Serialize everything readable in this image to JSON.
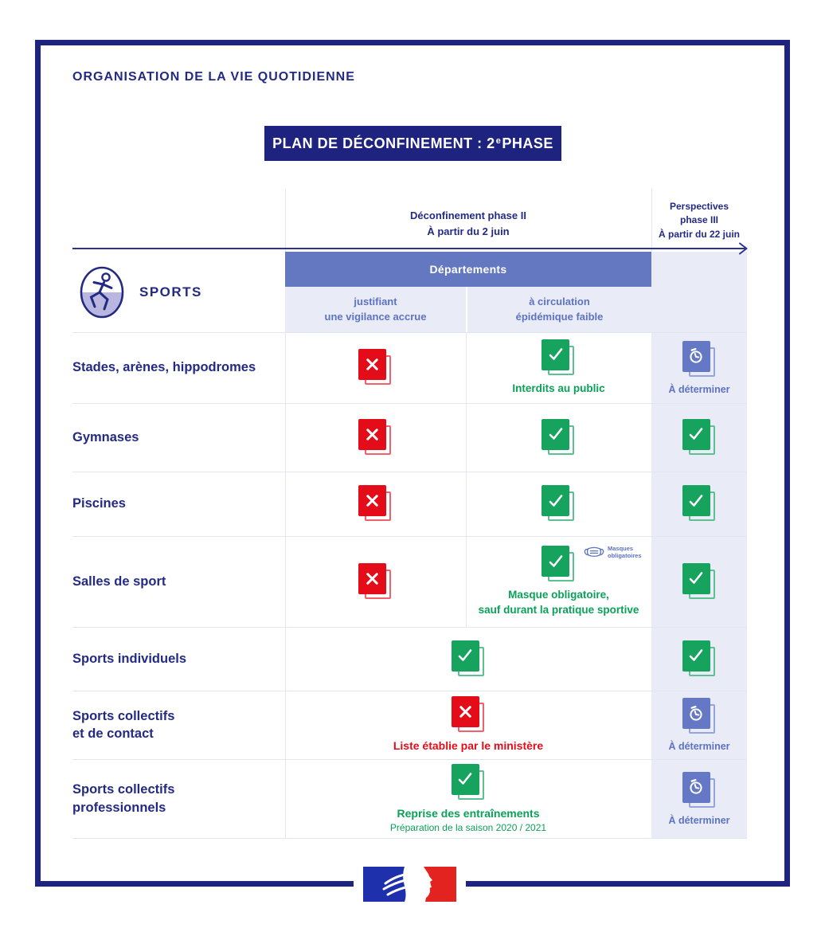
{
  "header": {
    "section_title": "ORGANISATION DE LA VIE QUOTIDIENNE",
    "banner_prefix": "PLAN DE DÉCONFINEMENT : 2",
    "banner_sup": "e",
    "banner_suffix": " PHASE"
  },
  "timeline": {
    "phase2_label": "Déconfinement phase II\nÀ partir du 2 juin",
    "phase3_label": "Perspectives\nphase III\nÀ partir du 22 juin"
  },
  "table": {
    "section_label": "SPORTS",
    "group_header": "Départements",
    "subcol_left": "justifiant\nune vigilance accrue",
    "subcol_right": "à circulation\népidémique faible",
    "tbd_label": "À déterminer",
    "mask_badge_label": "Masques\nobligatoires",
    "rows": [
      {
        "label": "Stades, arènes, hippodromes",
        "col1_status": "interdit",
        "col2_status": "autorisé",
        "col2_note": "Interdits au public",
        "phase3_status": "à déterminer"
      },
      {
        "label": "Gymnases",
        "col1_status": "interdit",
        "col2_status": "autorisé",
        "phase3_status": "autorisé"
      },
      {
        "label": "Piscines",
        "col1_status": "interdit",
        "col2_status": "autorisé",
        "phase3_status": "autorisé"
      },
      {
        "label": "Salles de sport",
        "col1_status": "interdit",
        "col2_status": "autorisé",
        "col2_has_mask_badge": true,
        "col2_note": "Masque obligatoire,\nsauf durant la pratique sportive",
        "phase3_status": "autorisé"
      },
      {
        "label": "Sports individuels",
        "span_status": "autorisé",
        "phase3_status": "autorisé"
      },
      {
        "label": "Sports collectifs\net de contact",
        "span_status": "interdit",
        "span_note": "Liste établie par le ministère",
        "phase3_status": "à déterminer"
      },
      {
        "label": "Sports collectifs\nprofessionnels",
        "span_status": "autorisé",
        "span_note": "Reprise des entraînements",
        "span_subnote": "Préparation de la saison 2020 / 2021",
        "phase3_status": "à déterminer"
      }
    ]
  },
  "footer": {
    "logo": "marianne-french-government-logo"
  },
  "colors": {
    "navy": "#232a84",
    "periwinkle": "#6478c1",
    "lavender": "#e9ebf6",
    "green": "#16a35d",
    "red": "#e40c19",
    "clock_periwinkle": "#6478c6",
    "logo_blue": "#1f30ad",
    "logo_red": "#e32320"
  }
}
